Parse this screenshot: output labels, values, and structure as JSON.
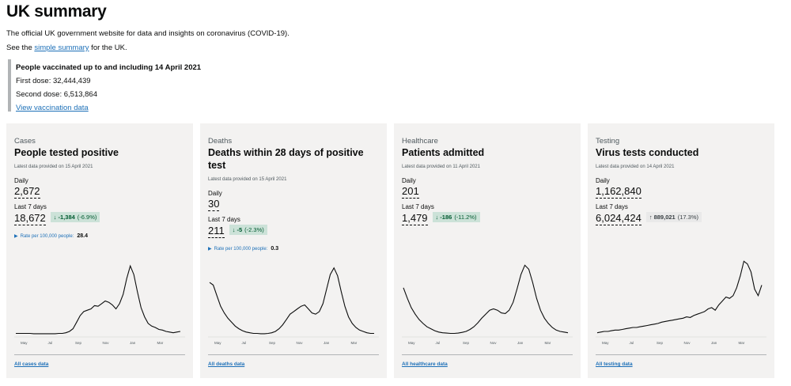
{
  "page": {
    "title": "UK summary",
    "intro": "The official UK government website for data and insights on coronavirus (COVID-19).",
    "see_prefix": "See the ",
    "see_link": "simple summary",
    "see_suffix": " for the UK."
  },
  "vaccination": {
    "title": "People vaccinated up to and including 14 April 2021",
    "first_dose": "First dose: 32,444,439",
    "second_dose": "Second dose: 6,513,864",
    "link": "View vaccination data"
  },
  "cards": [
    {
      "category": "Cases",
      "heading": "People tested positive",
      "latest": "Latest data provided on 15 April 2021",
      "daily_label": "Daily",
      "daily_value": "2,672",
      "week_label": "Last 7 days",
      "week_value": "18,672",
      "change_arrow": "↓",
      "change_value": "-1,384",
      "change_pct": "(-6.9%)",
      "change_dir": "down",
      "rate_label": "Rate per 100,000 people:",
      "rate_value": "28.4",
      "footer_link": "All cases data",
      "months": [
        "May",
        "Jul",
        "Sep",
        "Nov",
        "Jan",
        "Mar"
      ],
      "series": [
        3,
        3,
        3,
        3,
        3,
        2.5,
        2.5,
        2.5,
        2.5,
        2.5,
        2.5,
        2.5,
        3,
        3,
        4,
        6,
        10,
        20,
        30,
        36,
        38,
        40,
        45,
        44,
        48,
        52,
        50,
        46,
        40,
        48,
        62,
        86,
        105,
        92,
        66,
        42,
        28,
        18,
        14,
        12,
        9,
        8,
        6,
        5,
        4,
        5,
        6
      ]
    },
    {
      "category": "Deaths",
      "heading": "Deaths within 28 days of positive test",
      "latest": "Latest data provided on 15 April 2021",
      "daily_label": "Daily",
      "daily_value": "30",
      "week_label": "Last 7 days",
      "week_value": "211",
      "change_arrow": "↓",
      "change_value": "-5",
      "change_pct": "(-2.3%)",
      "change_dir": "down",
      "rate_label": "Rate per 100,000 people:",
      "rate_value": "0.3",
      "footer_link": "All deaths data",
      "months": [
        "May",
        "Jul",
        "Sep",
        "Nov",
        "Jan",
        "Mar"
      ],
      "series": [
        80,
        76,
        60,
        44,
        34,
        26,
        20,
        14,
        10,
        7,
        5,
        4,
        3,
        3,
        2.5,
        2.5,
        3,
        4,
        6,
        10,
        16,
        24,
        32,
        36,
        40,
        44,
        46,
        40,
        34,
        32,
        36,
        48,
        70,
        92,
        102,
        90,
        66,
        44,
        28,
        18,
        12,
        8,
        6,
        4,
        3,
        3
      ]
    },
    {
      "category": "Healthcare",
      "heading": "Patients admitted",
      "latest": "Latest data provided on 11 April 2021",
      "daily_label": "Daily",
      "daily_value": "201",
      "week_label": "Last 7 days",
      "week_value": "1,479",
      "change_arrow": "↓",
      "change_value": "-186",
      "change_pct": "(-11.2%)",
      "change_dir": "down",
      "rate_label": "",
      "rate_value": "",
      "footer_link": "All healthcare data",
      "months": [
        "May",
        "Jul",
        "Sep",
        "Nov",
        "Jan",
        "Mar"
      ],
      "series": [
        72,
        56,
        42,
        32,
        24,
        18,
        13,
        10,
        7,
        5,
        4,
        3.5,
        3,
        3,
        3.5,
        4.5,
        6,
        9,
        13,
        19,
        26,
        32,
        38,
        40,
        38,
        34,
        33,
        38,
        50,
        70,
        92,
        106,
        100,
        80,
        56,
        38,
        26,
        18,
        12,
        8,
        6,
        5,
        4
      ]
    },
    {
      "category": "Testing",
      "heading": "Virus tests conducted",
      "latest": "Latest data provided on 14 April 2021",
      "daily_label": "Daily",
      "daily_value": "1,162,840",
      "week_label": "Last 7 days",
      "week_value": "6,024,424",
      "change_arrow": "↑",
      "change_value": "889,021",
      "change_pct": "(17.3%)",
      "change_dir": "up",
      "rate_label": "",
      "rate_value": "",
      "footer_link": "All testing data",
      "months": [
        "May",
        "Jul",
        "Sep",
        "Nov",
        "Jan",
        "Mar"
      ],
      "series": [
        4,
        5,
        6,
        6,
        7,
        8,
        8,
        9,
        10,
        11,
        12,
        12,
        13,
        14,
        15,
        16,
        17,
        18,
        20,
        21,
        22,
        23,
        24,
        25,
        26,
        28,
        27,
        30,
        32,
        34,
        36,
        40,
        42,
        38,
        46,
        52,
        58,
        56,
        60,
        72,
        90,
        112,
        108,
        96,
        70,
        60,
        76
      ]
    }
  ],
  "colors": {
    "link": "#1d70b8",
    "card_bg": "#f3f2f1",
    "down_bg": "#cce2d8",
    "down_text": "#005a30",
    "up_bg": "#e9e9e9"
  }
}
